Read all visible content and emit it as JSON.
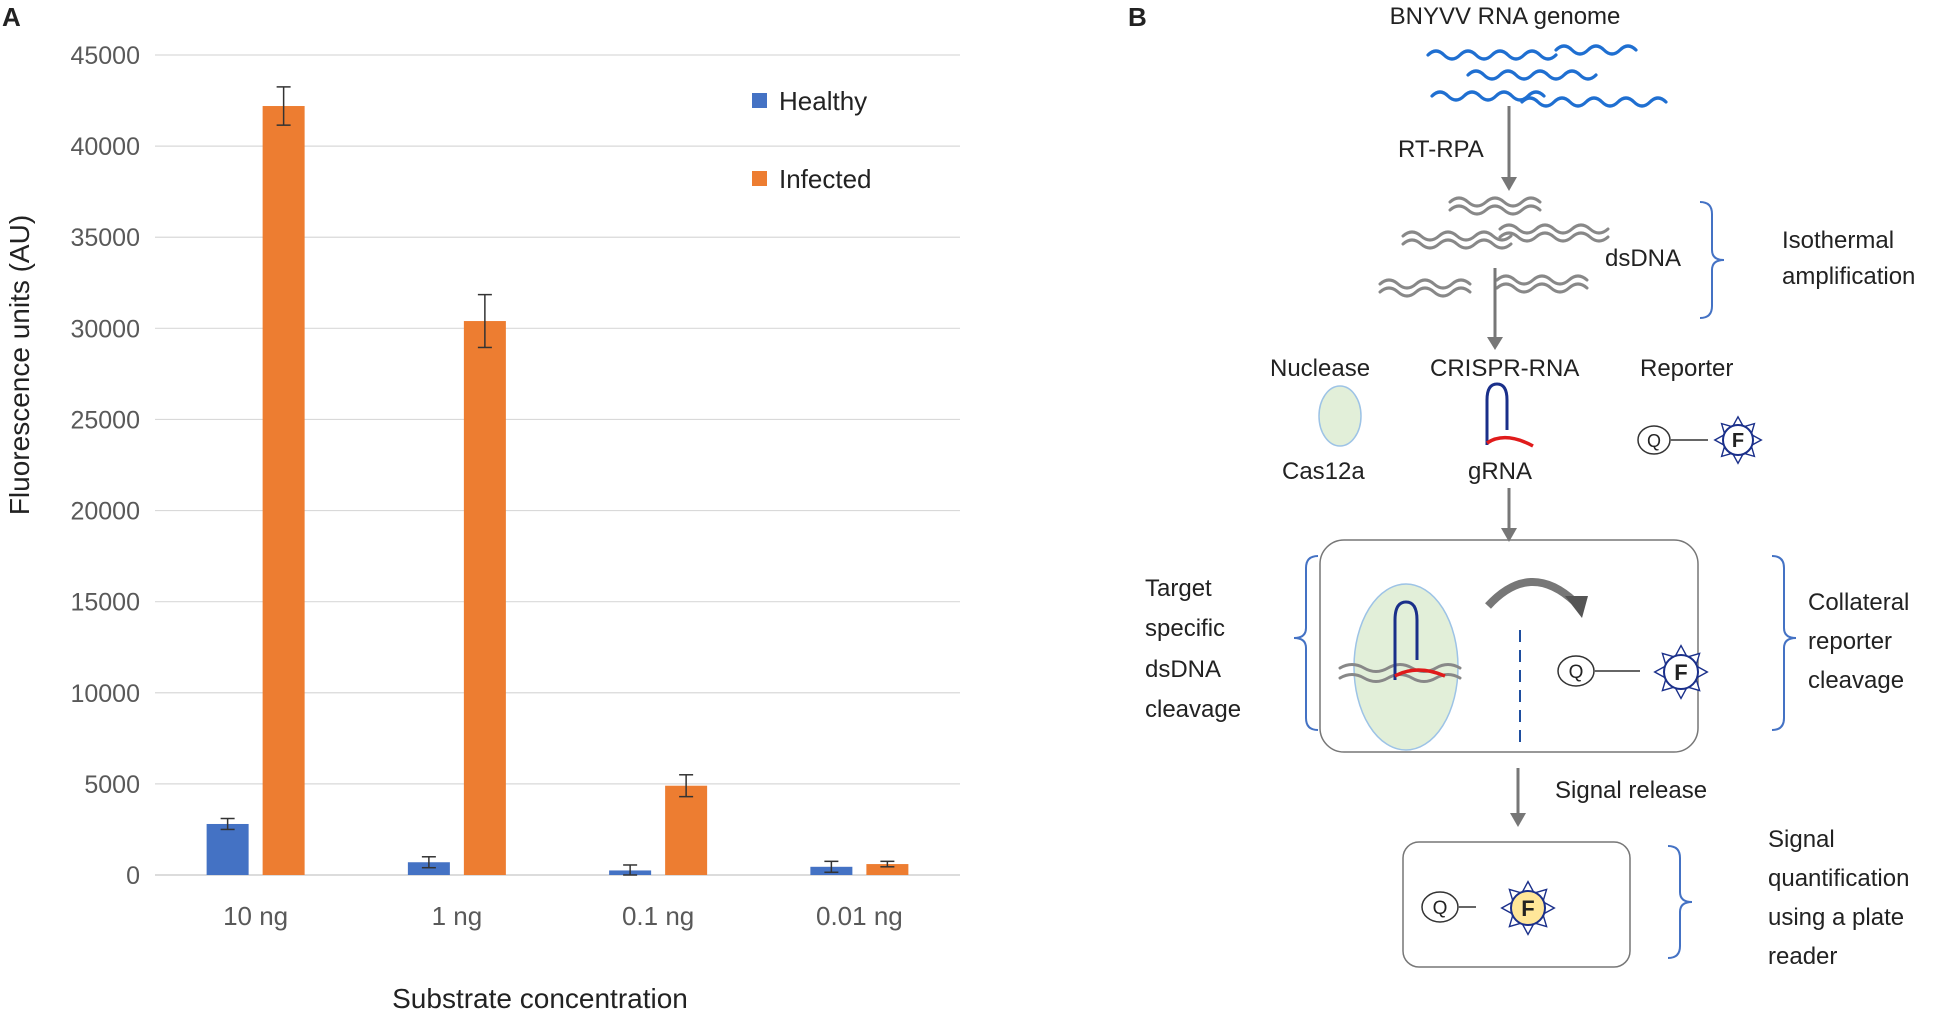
{
  "panels": {
    "a": "A",
    "b": "B"
  },
  "chart_data": {
    "type": "bar",
    "title": "",
    "xlabel": "Substrate concentration",
    "ylabel": "Fluorescence units (AU)",
    "ylim": [
      0,
      45000
    ],
    "yticks": [
      0,
      5000,
      10000,
      15000,
      20000,
      25000,
      30000,
      35000,
      40000,
      45000
    ],
    "grid": true,
    "legend_position": "top-right",
    "categories": [
      "10 ng",
      "1 ng",
      "0.1 ng",
      "0.01 ng"
    ],
    "series": [
      {
        "name": "Healthy",
        "color": "#4472C4",
        "values": [
          2800,
          700,
          250,
          450
        ],
        "errors": [
          300,
          300,
          300,
          300
        ]
      },
      {
        "name": "Infected",
        "color": "#ED7D31",
        "values": [
          42200,
          30400,
          4900,
          600
        ],
        "errors": [
          1050,
          1450,
          600,
          150
        ]
      }
    ]
  },
  "diagram": {
    "genome": "BNYVV RNA genome",
    "rt_rpa": "RT-RPA",
    "dsdna": "dsDNA",
    "isothermal": [
      "Isothermal",
      "amplification"
    ],
    "nuclease": "Nuclease",
    "crispr_rna": "CRISPR-RNA",
    "reporter": "Reporter",
    "cas12a": "Cas12a",
    "grna": "gRNA",
    "q": "Q",
    "f": "F",
    "target_cleavage": [
      "Target",
      "specific",
      "dsDNA",
      "cleavage"
    ],
    "collateral": [
      "Collateral",
      "reporter",
      "cleavage"
    ],
    "signal_release": "Signal release",
    "quantification": [
      "Signal",
      "quantification",
      "using a plate",
      "reader"
    ],
    "colors": {
      "rna": "#1f6fd1",
      "dna": "#888888",
      "guide_blue": "#1a2f8a",
      "guide_red": "#e01b1b",
      "nuclease": "#e2efd9",
      "fluor_yellow": "#ffe699",
      "bracket": "#4472c4"
    }
  }
}
